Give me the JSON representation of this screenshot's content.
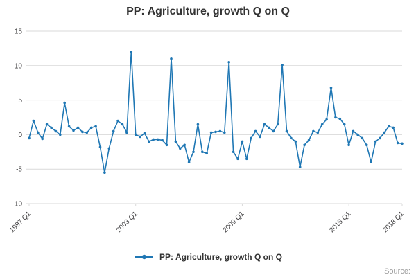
{
  "page": {
    "source_label": "Source:"
  },
  "legend": {
    "label": "PP: Agriculture, growth Q on Q"
  },
  "chart_data": {
    "type": "line",
    "title": "PP: Agriculture, growth Q on Q",
    "series_name": "PP: Agriculture, growth Q on Q",
    "xlabel": "",
    "ylabel": "",
    "ylim": [
      -10,
      15
    ],
    "y_ticks": [
      15,
      10,
      5,
      0,
      -5,
      -10
    ],
    "grid": "horizontal",
    "legend_position": "bottom",
    "line_color": "#1f77b4",
    "grid_color": "#d9d9d9",
    "text_color": "#414042",
    "x_ticks": [
      {
        "index": 0,
        "label": "1997 Q1"
      },
      {
        "index": 24,
        "label": "2003 Q1"
      },
      {
        "index": 48,
        "label": "2009 Q1"
      },
      {
        "index": 72,
        "label": "2015 Q1"
      },
      {
        "index": 84,
        "label": "2018 Q1"
      }
    ],
    "x": [
      "1997 Q1",
      "1997 Q2",
      "1997 Q3",
      "1997 Q4",
      "1998 Q1",
      "1998 Q2",
      "1998 Q3",
      "1998 Q4",
      "1999 Q1",
      "1999 Q2",
      "1999 Q3",
      "1999 Q4",
      "2000 Q1",
      "2000 Q2",
      "2000 Q3",
      "2000 Q4",
      "2001 Q1",
      "2001 Q2",
      "2001 Q3",
      "2001 Q4",
      "2002 Q1",
      "2002 Q2",
      "2002 Q3",
      "2002 Q4",
      "2003 Q1",
      "2003 Q2",
      "2003 Q3",
      "2003 Q4",
      "2004 Q1",
      "2004 Q2",
      "2004 Q3",
      "2004 Q4",
      "2005 Q1",
      "2005 Q2",
      "2005 Q3",
      "2005 Q4",
      "2006 Q1",
      "2006 Q2",
      "2006 Q3",
      "2006 Q4",
      "2007 Q1",
      "2007 Q2",
      "2007 Q3",
      "2007 Q4",
      "2008 Q1",
      "2008 Q2",
      "2008 Q3",
      "2008 Q4",
      "2009 Q1",
      "2009 Q2",
      "2009 Q3",
      "2009 Q4",
      "2010 Q1",
      "2010 Q2",
      "2010 Q3",
      "2010 Q4",
      "2011 Q1",
      "2011 Q2",
      "2011 Q3",
      "2011 Q4",
      "2012 Q1",
      "2012 Q2",
      "2012 Q3",
      "2012 Q4",
      "2013 Q1",
      "2013 Q2",
      "2013 Q3",
      "2013 Q4",
      "2014 Q1",
      "2014 Q2",
      "2014 Q3",
      "2014 Q4",
      "2015 Q1",
      "2015 Q2",
      "2015 Q3",
      "2015 Q4",
      "2016 Q1",
      "2016 Q2",
      "2016 Q3",
      "2016 Q4",
      "2017 Q1",
      "2017 Q2",
      "2017 Q3",
      "2017 Q4",
      "2018 Q1"
    ],
    "values": [
      -0.5,
      2.0,
      0.3,
      -0.6,
      1.5,
      1.0,
      0.5,
      0.0,
      4.6,
      1.2,
      0.6,
      1.0,
      0.4,
      0.3,
      1.0,
      1.2,
      -1.8,
      -5.5,
      -2.0,
      0.5,
      2.0,
      1.5,
      0.3,
      12.0,
      0.0,
      -0.3,
      0.2,
      -1.0,
      -0.7,
      -0.7,
      -0.8,
      -1.5,
      11.0,
      -1.0,
      -2.0,
      -1.5,
      -4.0,
      -2.5,
      1.5,
      -2.5,
      -2.7,
      0.3,
      0.4,
      0.5,
      0.3,
      10.5,
      -2.5,
      -3.5,
      -1.0,
      -3.5,
      -0.5,
      0.5,
      -0.3,
      1.5,
      1.0,
      0.5,
      1.5,
      10.1,
      0.5,
      -0.5,
      -1.0,
      -4.7,
      -1.5,
      -0.8,
      0.5,
      0.3,
      1.5,
      2.2,
      6.8,
      2.5,
      2.3,
      1.5,
      -1.5,
      0.5,
      0.0,
      -0.5,
      -1.5,
      -4.0,
      -1.0,
      -0.5,
      0.3,
      1.2,
      1.0,
      -1.2,
      -1.3
    ]
  }
}
